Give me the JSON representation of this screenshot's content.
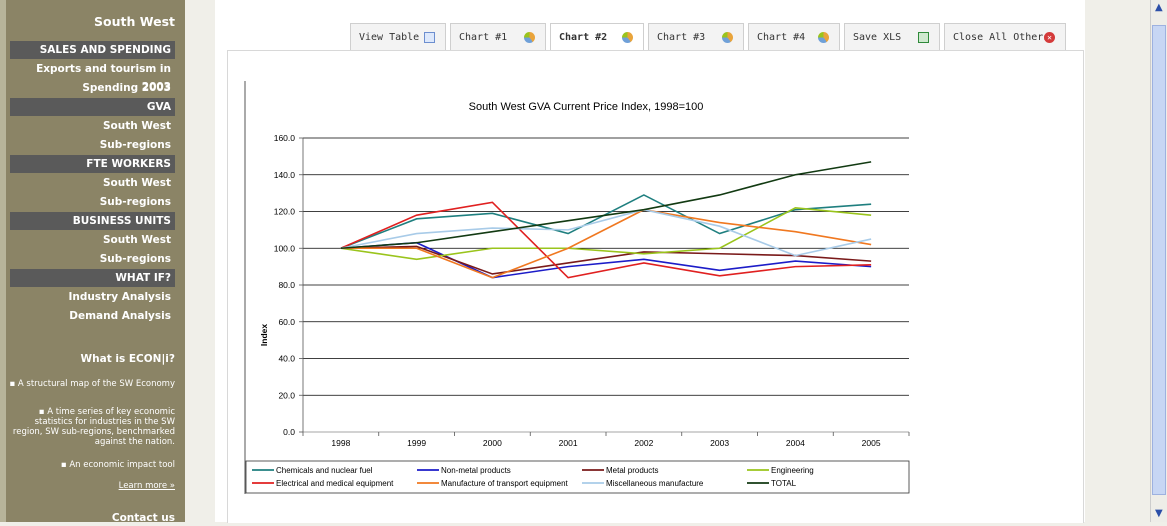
{
  "sidebar": {
    "brand": "South West",
    "items": [
      {
        "label": "SALES AND SPENDING",
        "kind": "section"
      },
      {
        "label": "Exports and tourism in 2003",
        "kind": "link"
      },
      {
        "label": "Spending 2003",
        "kind": "link"
      },
      {
        "label": "GVA",
        "kind": "section"
      },
      {
        "label": "South West",
        "kind": "link"
      },
      {
        "label": "Sub-regions",
        "kind": "link"
      },
      {
        "label": "FTE WORKERS",
        "kind": "section"
      },
      {
        "label": "South West",
        "kind": "link"
      },
      {
        "label": "Sub-regions",
        "kind": "link"
      },
      {
        "label": "BUSINESS UNITS",
        "kind": "section"
      },
      {
        "label": "South West",
        "kind": "link"
      },
      {
        "label": "Sub-regions",
        "kind": "link"
      },
      {
        "label": "WHAT IF?",
        "kind": "section"
      },
      {
        "label": "Industry Analysis",
        "kind": "link"
      },
      {
        "label": "Demand Analysis",
        "kind": "link"
      }
    ],
    "info_title": "What is ECON|i?",
    "info_items": [
      "▪ A structural map of the SW Economy",
      "▪ A time series of key economic statistics for industries in the SW region, SW sub-regions, benchmarked against the nation.",
      "▪ An economic impact tool"
    ],
    "learn_more": "Learn more »",
    "contact": "Contact us"
  },
  "tabs": [
    {
      "label": "View Table",
      "icon": "table-icon",
      "active": false
    },
    {
      "label": "Chart #1",
      "icon": "chart-icon",
      "active": false
    },
    {
      "label": "Chart #2",
      "icon": "chart-icon",
      "active": true
    },
    {
      "label": "Chart #3",
      "icon": "chart-icon",
      "active": false
    },
    {
      "label": "Chart #4",
      "icon": "chart-icon",
      "active": false
    },
    {
      "label": "Save XLS",
      "icon": "excel-icon",
      "active": false
    },
    {
      "label": "Close All Others",
      "icon": "close-icon",
      "active": false
    }
  ],
  "colors": {
    "sidebar_bg": "#8b8466",
    "section_bg": "#5a5a5a",
    "close_icon": "#d43a3a",
    "excel_icon": "#2f8a3a",
    "chart_icon": "#e9a43b"
  },
  "chart_data": {
    "type": "line",
    "title": "South West GVA Current Price Index, 1998=100",
    "xlabel": "",
    "ylabel": "Index",
    "ylim": [
      0,
      160
    ],
    "yticks": [
      "0.0",
      "20.0",
      "40.0",
      "60.0",
      "80.0",
      "100.0",
      "120.0",
      "140.0",
      "160.0"
    ],
    "x": [
      "1998",
      "1999",
      "2000",
      "2001",
      "2002",
      "2003",
      "2004",
      "2005"
    ],
    "grid": true,
    "legend": "bottom",
    "series": [
      {
        "name": "Chemicals and nuclear fuel",
        "color": "#1f7f7f",
        "values": [
          100,
          116,
          119,
          108,
          129,
          108,
          121,
          124
        ]
      },
      {
        "name": "Non-metal products",
        "color": "#1c1cc8",
        "values": [
          100,
          103,
          84,
          90,
          94,
          88,
          93,
          90
        ]
      },
      {
        "name": "Metal products",
        "color": "#7a1a1a",
        "values": [
          100,
          101,
          86,
          92,
          98,
          97,
          96,
          93
        ]
      },
      {
        "name": "Engineering",
        "color": "#9ac41c",
        "values": [
          100,
          94,
          100,
          100,
          97,
          100,
          122,
          118
        ]
      },
      {
        "name": "Electrical and medical equipment",
        "color": "#e02020",
        "values": [
          100,
          118,
          125,
          84,
          92,
          85,
          90,
          91
        ]
      },
      {
        "name": "Manufacture of transport equipment",
        "color": "#f07820",
        "values": [
          100,
          100,
          84,
          100,
          121,
          114,
          109,
          102
        ]
      },
      {
        "name": "Miscellaneous manufacture",
        "color": "#a8cbe8",
        "values": [
          100,
          108,
          111,
          110,
          121,
          112,
          96,
          105
        ]
      },
      {
        "name": "TOTAL",
        "color": "#123a12",
        "values": [
          100,
          103,
          109,
          115,
          121,
          129,
          140,
          147
        ]
      }
    ]
  }
}
